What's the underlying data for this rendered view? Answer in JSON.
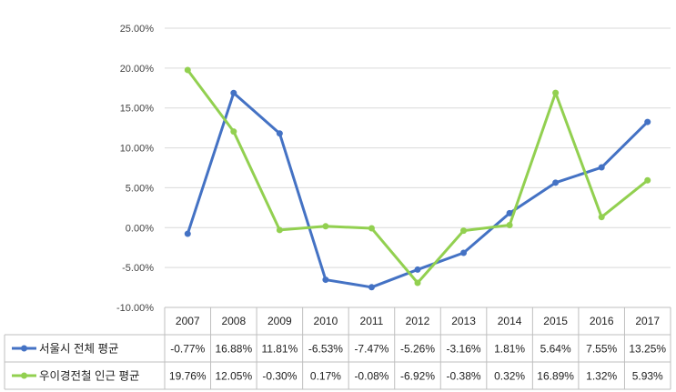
{
  "chart_data": {
    "type": "line",
    "title": "",
    "xlabel": "",
    "ylabel": "",
    "categories": [
      "2007",
      "2008",
      "2009",
      "2010",
      "2011",
      "2012",
      "2013",
      "2014",
      "2015",
      "2016",
      "2017"
    ],
    "ylim": [
      -10,
      25
    ],
    "ytick_step": 5,
    "ytick_labels": [
      "25.00%",
      "20.00%",
      "15.00%",
      "10.00%",
      "5.00%",
      "0.00%",
      "-5.00%",
      "-10.00%"
    ],
    "grid": true,
    "legend": "table-left",
    "series": [
      {
        "name": "서울시 전체 평균",
        "color": "#4472C4",
        "values": [
          -0.77,
          16.88,
          11.81,
          -6.53,
          -7.47,
          -5.26,
          -3.16,
          1.81,
          5.64,
          7.55,
          13.25
        ],
        "labels": [
          "-0.77%",
          "16.88%",
          "11.81%",
          "-6.53%",
          "-7.47%",
          "-5.26%",
          "-3.16%",
          "1.81%",
          "5.64%",
          "7.55%",
          "13.25%"
        ]
      },
      {
        "name": "우이경전철 인근 평균",
        "color": "#92D050",
        "values": [
          19.76,
          12.05,
          -0.3,
          0.17,
          -0.08,
          -6.92,
          -0.38,
          0.32,
          16.89,
          1.32,
          5.93
        ],
        "labels": [
          "19.76%",
          "12.05%",
          "-0.30%",
          "0.17%",
          "-0.08%",
          "-6.92%",
          "-0.38%",
          "0.32%",
          "16.89%",
          "1.32%",
          "5.93%"
        ]
      }
    ]
  }
}
